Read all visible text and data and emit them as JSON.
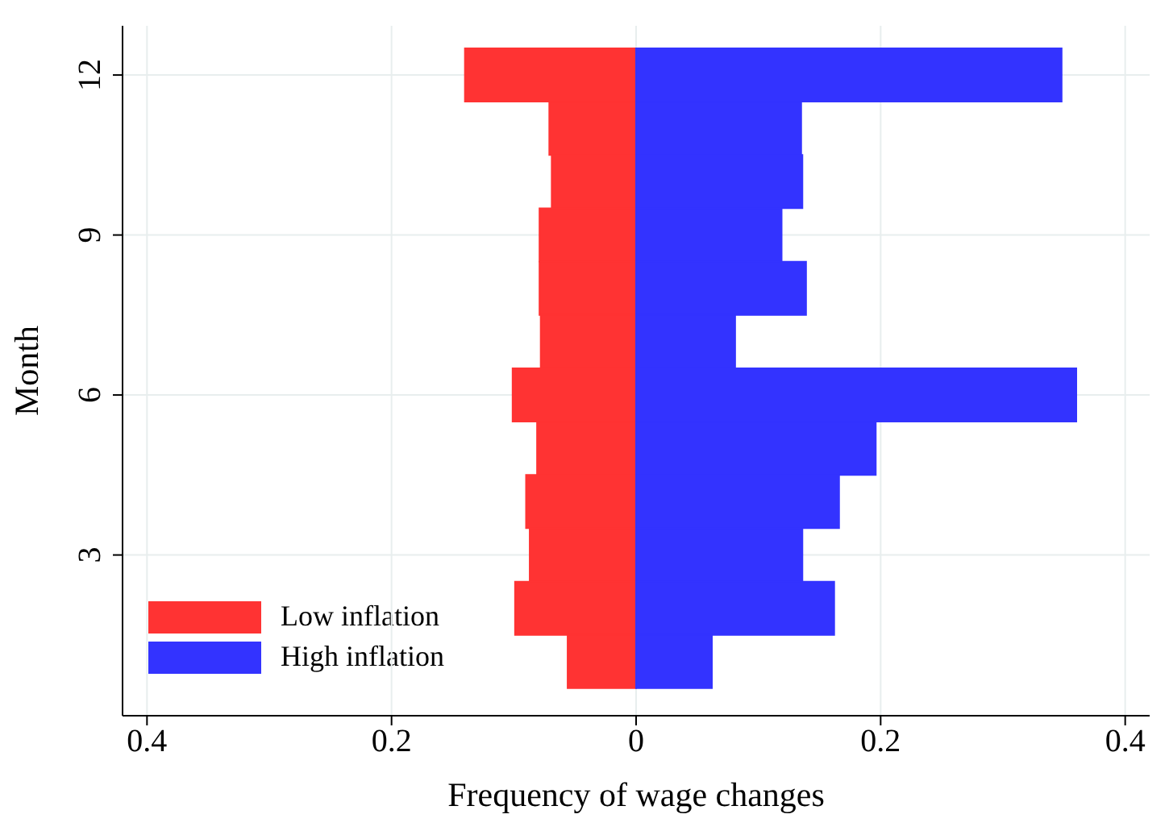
{
  "chart_data": {
    "type": "bar",
    "orientation": "horizontal",
    "stacked": true,
    "xlabel": "Frequency of wage changes",
    "ylabel": "Month",
    "categories": [
      "12",
      null,
      null,
      "9",
      null,
      null,
      "6",
      null,
      null,
      "3",
      null,
      null
    ],
    "series": [
      {
        "name": "Low inflation",
        "color": "#ff3333",
        "values": [
          -0.14,
          -0.071,
          -0.069,
          -0.079,
          -0.079,
          -0.078,
          -0.101,
          -0.081,
          -0.09,
          -0.087,
          -0.099,
          -0.056
        ]
      },
      {
        "name": "High inflation",
        "color": "#3333ff",
        "values": [
          0.348,
          0.135,
          0.136,
          0.119,
          0.139,
          0.081,
          0.36,
          0.196,
          0.166,
          0.136,
          0.162,
          0.062
        ]
      }
    ],
    "xlim": [
      -0.42,
      0.42
    ],
    "xticks": [
      {
        "value": -0.4,
        "label": "0.4"
      },
      {
        "value": -0.2,
        "label": "0.2"
      },
      0,
      0.2,
      0.4
    ],
    "grid": true,
    "legend": "bottom left"
  }
}
